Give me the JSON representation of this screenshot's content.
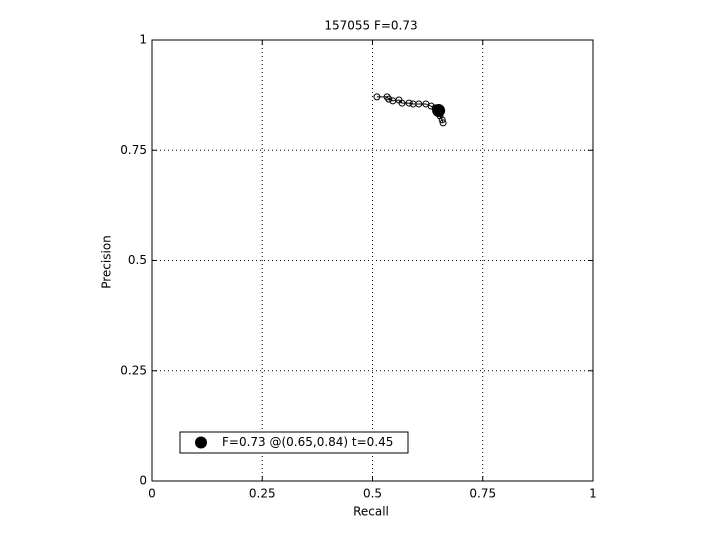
{
  "chart_data": {
    "type": "line",
    "title": "157055 F=0.73",
    "xlabel": "Recall",
    "ylabel": "Precision",
    "xlim": [
      0,
      1
    ],
    "ylim": [
      0,
      1
    ],
    "xticks": [
      0,
      0.25,
      0.5,
      0.75,
      1
    ],
    "yticks": [
      0,
      0.25,
      0.5,
      0.75,
      1
    ],
    "grid": true,
    "legend": "lower left",
    "series": [
      {
        "color": "#000000",
        "marker": "circle",
        "linestyle": "solid",
        "x": [
          0.51,
          0.533,
          0.537,
          0.546,
          0.56,
          0.567,
          0.583,
          0.592,
          0.605,
          0.621,
          0.633,
          0.642,
          0.649,
          0.653,
          0.658,
          0.66
        ],
        "values": [
          0.871,
          0.871,
          0.866,
          0.862,
          0.864,
          0.857,
          0.857,
          0.855,
          0.855,
          0.855,
          0.85,
          0.846,
          0.839,
          0.828,
          0.819,
          0.812
        ]
      },
      {
        "name": "F=0.73 @(0.65,0.84) t=0.45",
        "color": "#000000",
        "marker": "filled-circle",
        "linestyle": "none",
        "x": [
          0.65
        ],
        "values": [
          0.84
        ]
      }
    ]
  }
}
